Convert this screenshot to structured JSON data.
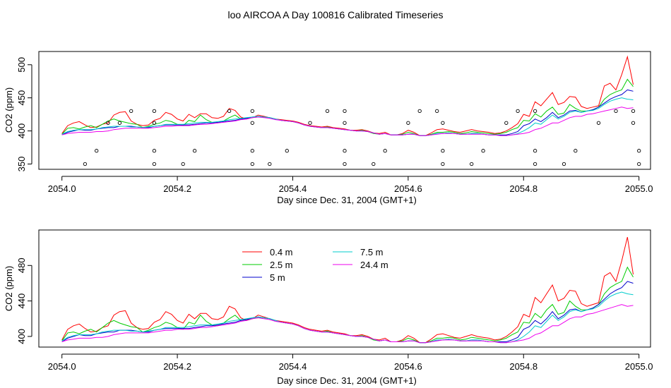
{
  "page_title": "loo AIRCOA A  Day 100816  Calibrated Timeseries",
  "chart_data": [
    {
      "type": "line",
      "xlabel": "Day since Dec. 31, 2004 (GMT+1)",
      "ylabel": "CO2 (ppm)",
      "xlim": [
        2053.96,
        2055.02
      ],
      "ylim": [
        342,
        520
      ],
      "x_ticks": [
        2054.0,
        2054.2,
        2054.4,
        2054.6,
        2054.8,
        2055.0
      ],
      "x_tick_labels": [
        "2054.0",
        "2054.2",
        "2054.4",
        "2054.6",
        "2054.8",
        "2055.0"
      ],
      "y_ticks": [
        350,
        400,
        450,
        500
      ],
      "y_tick_labels": [
        "350",
        "400",
        "450",
        "500"
      ],
      "x": [
        2054.0,
        2054.01,
        2054.02,
        2054.03,
        2054.04,
        2054.05,
        2054.06,
        2054.07,
        2054.08,
        2054.09,
        2054.1,
        2054.11,
        2054.12,
        2054.13,
        2054.14,
        2054.15,
        2054.16,
        2054.17,
        2054.18,
        2054.19,
        2054.2,
        2054.21,
        2054.22,
        2054.23,
        2054.24,
        2054.25,
        2054.26,
        2054.27,
        2054.28,
        2054.29,
        2054.3,
        2054.31,
        2054.32,
        2054.33,
        2054.34,
        2054.35,
        2054.36,
        2054.37,
        2054.38,
        2054.39,
        2054.4,
        2054.41,
        2054.42,
        2054.43,
        2054.44,
        2054.45,
        2054.46,
        2054.47,
        2054.48,
        2054.49,
        2054.5,
        2054.51,
        2054.52,
        2054.53,
        2054.54,
        2054.55,
        2054.56,
        2054.57,
        2054.58,
        2054.59,
        2054.6,
        2054.61,
        2054.62,
        2054.63,
        2054.64,
        2054.65,
        2054.66,
        2054.67,
        2054.68,
        2054.69,
        2054.7,
        2054.71,
        2054.72,
        2054.73,
        2054.74,
        2054.75,
        2054.76,
        2054.77,
        2054.78,
        2054.79,
        2054.8,
        2054.81,
        2054.82,
        2054.83,
        2054.84,
        2054.85,
        2054.86,
        2054.87,
        2054.88,
        2054.89,
        2054.9,
        2054.91,
        2054.92,
        2054.93,
        2054.94,
        2054.95,
        2054.96,
        2054.97,
        2054.98,
        2054.99
      ],
      "series": [
        {
          "color": "#ff0000",
          "values": [
            396,
            408,
            412,
            414,
            409,
            405,
            406,
            410,
            412,
            424,
            428,
            429,
            415,
            410,
            408,
            409,
            416,
            419,
            428,
            425,
            418,
            415,
            425,
            420,
            426,
            426,
            420,
            419,
            422,
            434,
            431,
            421,
            418,
            420,
            424,
            422,
            420,
            418,
            417,
            416,
            415,
            413,
            410,
            408,
            407,
            406,
            407,
            405,
            404,
            403,
            401,
            401,
            402,
            400,
            397,
            396,
            398,
            394,
            394,
            396,
            401,
            398,
            393,
            393,
            397,
            402,
            403,
            401,
            399,
            398,
            400,
            402,
            400,
            399,
            398,
            396,
            397,
            400,
            405,
            411,
            425,
            422,
            444,
            438,
            448,
            458,
            440,
            443,
            452,
            451,
            437,
            434,
            436,
            438,
            468,
            472,
            462,
            485,
            512,
            470
          ]
        },
        {
          "color": "#00cc00",
          "values": [
            395,
            404,
            405,
            403,
            406,
            408,
            405,
            410,
            415,
            418,
            415,
            413,
            411,
            410,
            405,
            407,
            410,
            412,
            416,
            414,
            410,
            408,
            416,
            414,
            424,
            417,
            413,
            412,
            415,
            420,
            424,
            418,
            419,
            420,
            421,
            421,
            420,
            418,
            416,
            415,
            414,
            412,
            409,
            407,
            406,
            405,
            406,
            404,
            403,
            402,
            401,
            400,
            401,
            399,
            396,
            395,
            396,
            394,
            394,
            395,
            398,
            396,
            393,
            393,
            395,
            398,
            398,
            399,
            398,
            396,
            397,
            399,
            398,
            397,
            396,
            395,
            396,
            398,
            402,
            405,
            416,
            415,
            426,
            421,
            430,
            436,
            425,
            427,
            440,
            434,
            430,
            430,
            432,
            436,
            448,
            455,
            459,
            462,
            478,
            467
          ]
        },
        {
          "color": "#0000cc",
          "values": [
            394,
            398,
            400,
            402,
            401,
            401,
            403,
            404,
            405,
            405,
            407,
            407,
            407,
            406,
            405,
            405,
            407,
            408,
            409,
            409,
            409,
            409,
            409,
            410,
            411,
            412,
            412,
            413,
            414,
            415,
            416,
            418,
            419,
            421,
            422,
            421,
            420,
            418,
            416,
            415,
            414,
            412,
            409,
            407,
            406,
            405,
            405,
            404,
            403,
            402,
            401,
            400,
            400,
            399,
            397,
            395,
            396,
            394,
            394,
            394,
            395,
            395,
            393,
            393,
            394,
            396,
            396,
            397,
            396,
            395,
            395,
            396,
            396,
            395,
            394,
            394,
            394,
            394,
            396,
            399,
            408,
            411,
            418,
            414,
            420,
            428,
            420,
            424,
            430,
            431,
            428,
            430,
            432,
            436,
            442,
            448,
            452,
            455,
            462,
            460
          ]
        },
        {
          "color": "#00cccc",
          "values": [
            395,
            399,
            401,
            402,
            402,
            402,
            403,
            405,
            406,
            407,
            407,
            407,
            406,
            406,
            405,
            406,
            407,
            408,
            410,
            410,
            410,
            410,
            411,
            412,
            413,
            413,
            413,
            414,
            415,
            417,
            418,
            419,
            420,
            421,
            422,
            421,
            420,
            418,
            416,
            415,
            414,
            412,
            409,
            407,
            406,
            405,
            405,
            404,
            403,
            402,
            401,
            400,
            400,
            399,
            397,
            395,
            396,
            394,
            394,
            394,
            395,
            395,
            393,
            393,
            394,
            396,
            396,
            397,
            396,
            395,
            395,
            396,
            396,
            395,
            394,
            394,
            393,
            393,
            394,
            396,
            400,
            405,
            412,
            410,
            417,
            424,
            418,
            422,
            428,
            430,
            428,
            430,
            431,
            434,
            440,
            445,
            448,
            450,
            448,
            447
          ]
        },
        {
          "color": "#ee00ee",
          "values": [
            394,
            396,
            397,
            398,
            398,
            398,
            399,
            399,
            400,
            402,
            403,
            404,
            404,
            404,
            404,
            404,
            405,
            406,
            407,
            407,
            408,
            408,
            408,
            409,
            410,
            410,
            411,
            412,
            413,
            414,
            415,
            417,
            418,
            420,
            421,
            420,
            419,
            417,
            416,
            415,
            414,
            412,
            409,
            407,
            406,
            405,
            405,
            404,
            403,
            402,
            401,
            400,
            400,
            399,
            397,
            395,
            396,
            394,
            394,
            394,
            395,
            395,
            393,
            393,
            394,
            395,
            396,
            396,
            396,
            395,
            395,
            395,
            395,
            395,
            394,
            394,
            393,
            393,
            394,
            395,
            396,
            398,
            402,
            404,
            408,
            412,
            412,
            416,
            420,
            422,
            422,
            425,
            426,
            428,
            430,
            432,
            434,
            436,
            434,
            435
          ]
        }
      ],
      "points": {
        "x": [
          2054.04,
          2054.06,
          2054.08,
          2054.1,
          2054.12,
          2054.16,
          2054.16,
          2054.16,
          2054.16,
          2054.21,
          2054.23,
          2054.29,
          2054.33,
          2054.33,
          2054.33,
          2054.33,
          2054.36,
          2054.39,
          2054.43,
          2054.46,
          2054.49,
          2054.49,
          2054.49,
          2054.49,
          2054.54,
          2054.56,
          2054.6,
          2054.62,
          2054.65,
          2054.66,
          2054.66,
          2054.66,
          2054.71,
          2054.73,
          2054.77,
          2054.79,
          2054.82,
          2054.82,
          2054.82,
          2054.87,
          2054.89,
          2054.93,
          2054.96,
          2054.99,
          2054.99,
          2055.0,
          2055.0
        ],
        "y": [
          350,
          370,
          412,
          412,
          430,
          350,
          370,
          412,
          430,
          350,
          370,
          430,
          350,
          370,
          412,
          430,
          350,
          370,
          412,
          430,
          350,
          370,
          412,
          430,
          350,
          370,
          412,
          430,
          430,
          412,
          370,
          350,
          350,
          370,
          412,
          430,
          430,
          370,
          350,
          350,
          370,
          412,
          430,
          430,
          412,
          370,
          350
        ]
      }
    },
    {
      "type": "line",
      "xlabel": "Day since Dec. 31, 2004 (GMT+1)",
      "ylabel": "CO2 (ppm)",
      "xlim": [
        2053.96,
        2055.02
      ],
      "ylim": [
        388,
        520
      ],
      "x_ticks": [
        2054.0,
        2054.2,
        2054.4,
        2054.6,
        2054.8,
        2055.0
      ],
      "x_tick_labels": [
        "2054.0",
        "2054.2",
        "2054.4",
        "2054.6",
        "2054.8",
        "2055.0"
      ],
      "y_ticks": [
        400,
        440,
        480
      ],
      "y_tick_labels": [
        "400",
        "440",
        "480"
      ],
      "legend": {
        "position": "top-left",
        "entries": [
          {
            "label": "0.4 m",
            "color": "#ff0000"
          },
          {
            "label": "2.5 m",
            "color": "#00cc00"
          },
          {
            "label": "5 m",
            "color": "#0000cc"
          },
          {
            "label": "7.5 m",
            "color": "#00cccc"
          },
          {
            "label": "24.4 m",
            "color": "#ee00ee"
          }
        ]
      },
      "series_ref": "same series values as the upper panel"
    }
  ]
}
